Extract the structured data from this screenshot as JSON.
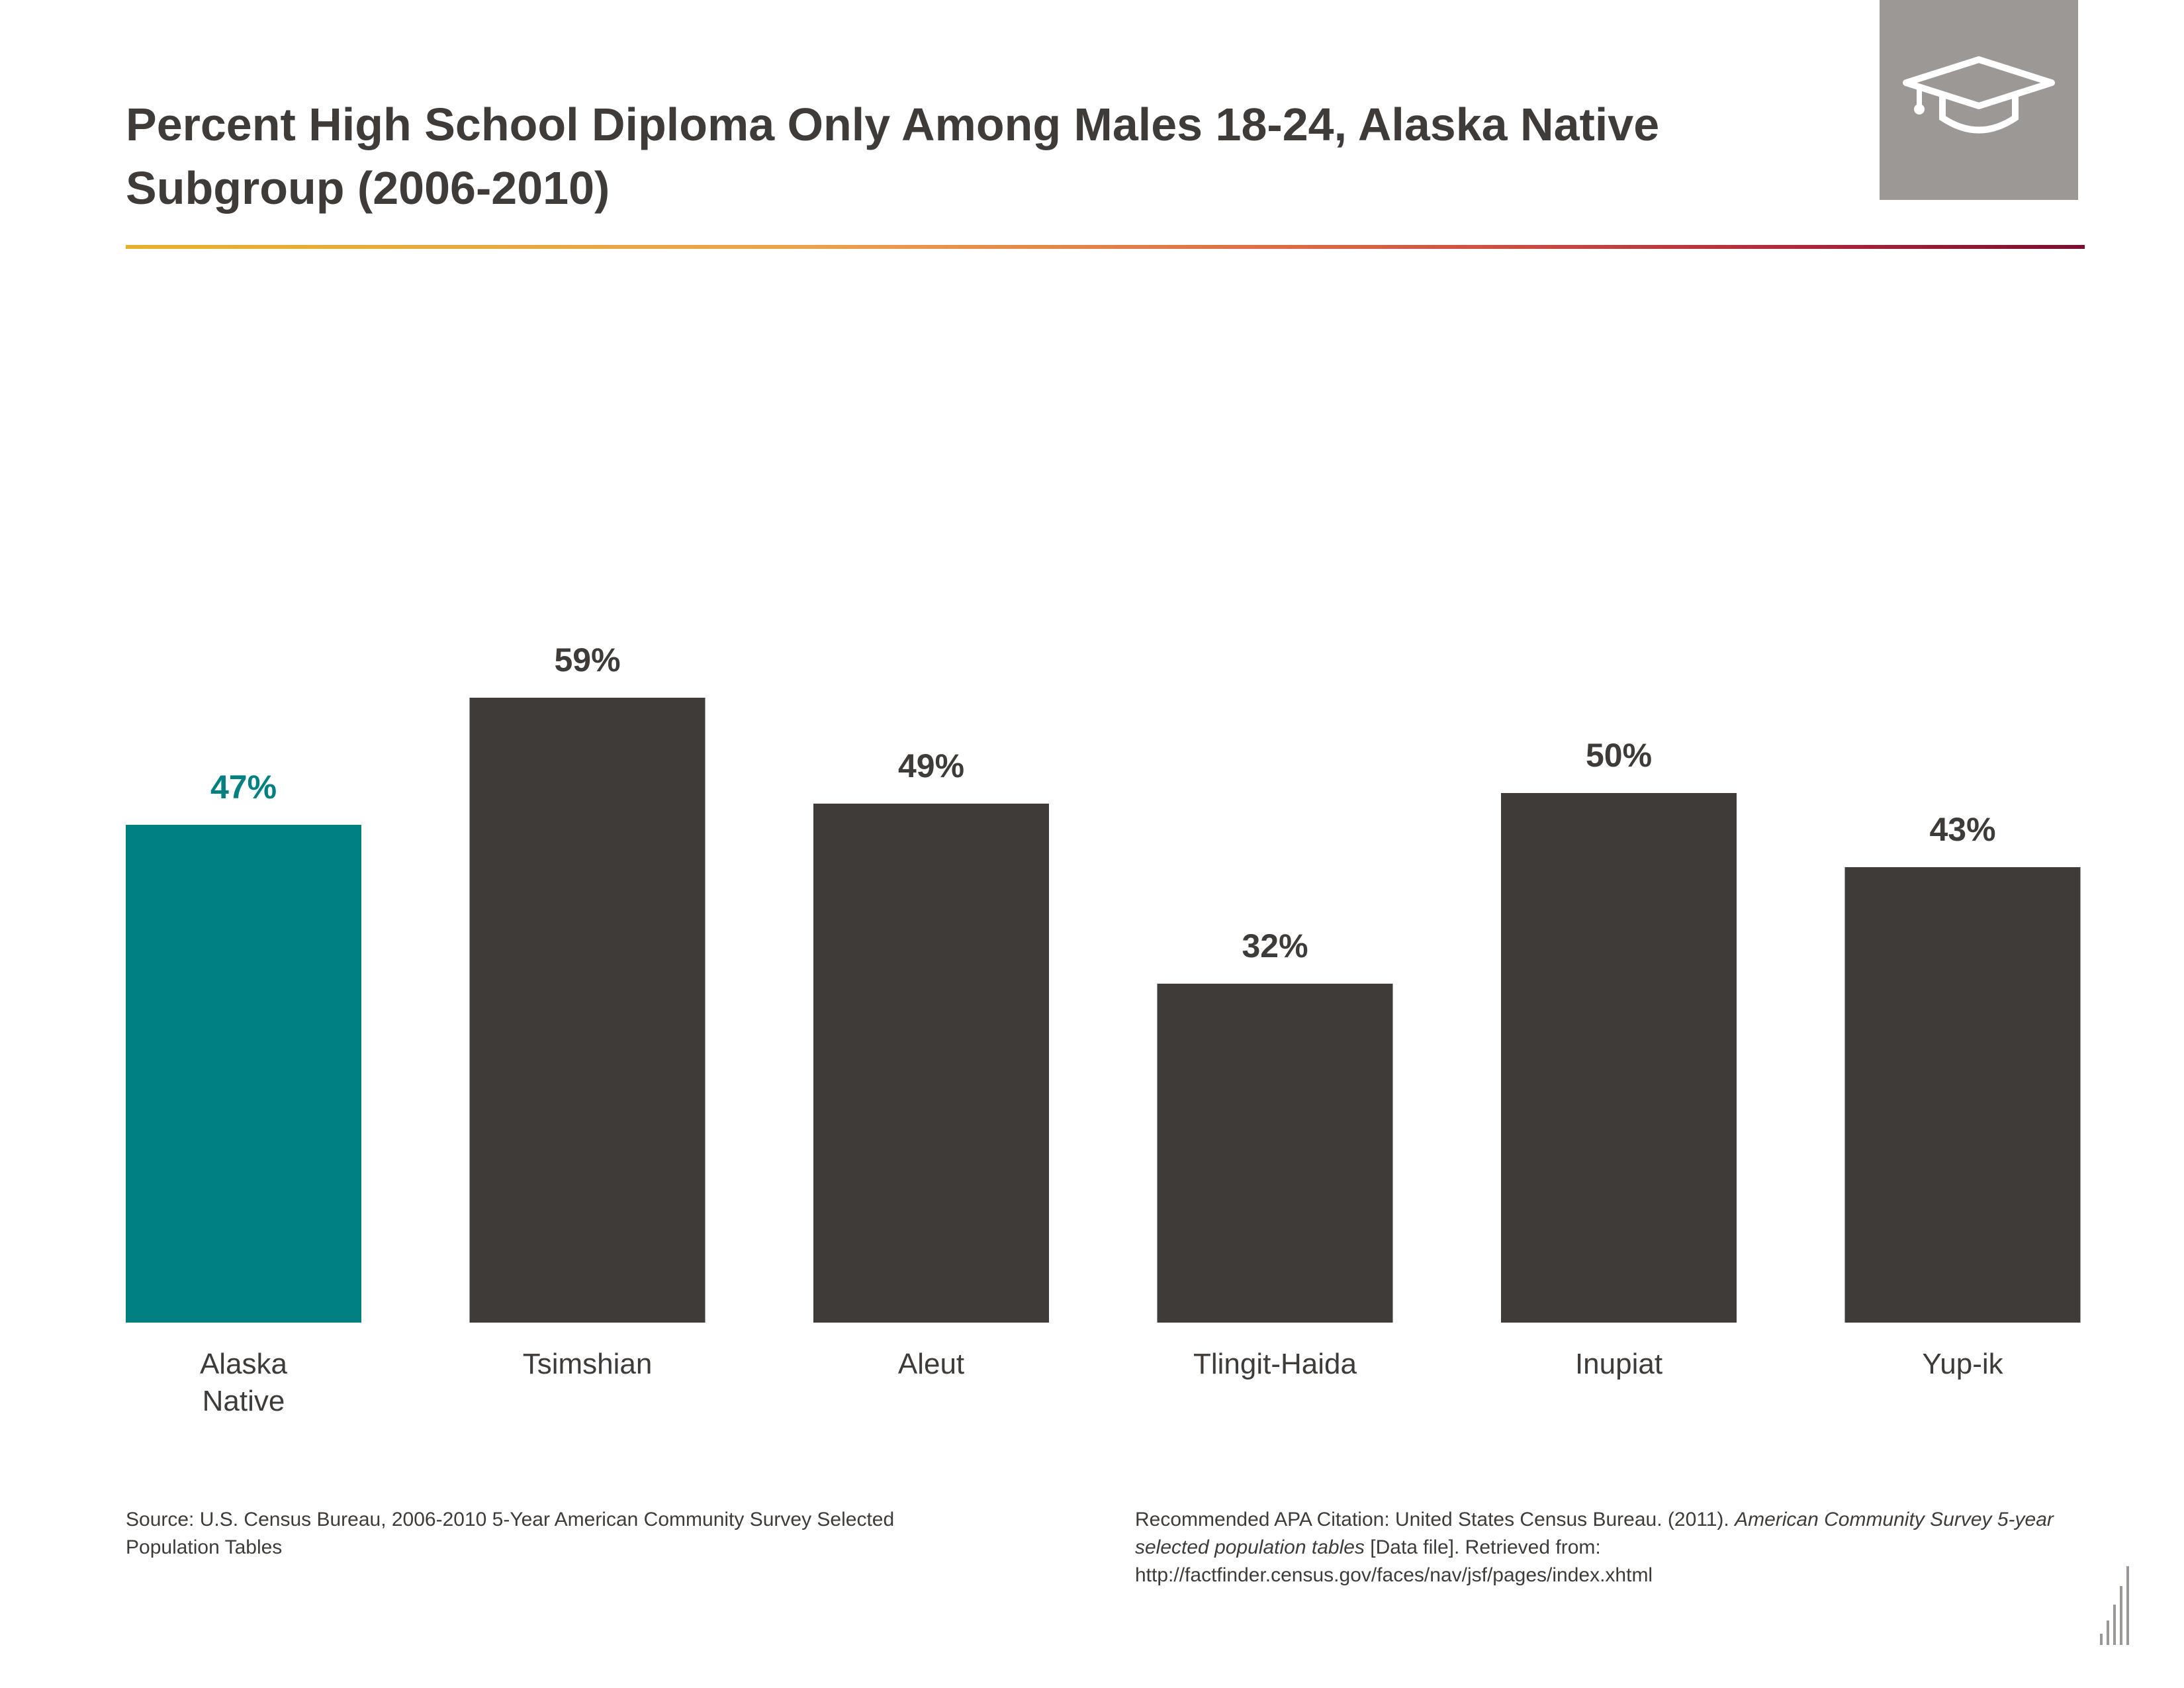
{
  "header": {
    "title": "Percent High School Diploma Only Among Males 18-24, Alaska Native Subgroup (2006-2010)",
    "badge_icon": "graduation-cap-icon"
  },
  "colors": {
    "highlight": "#008080",
    "bar": "#3f3b38",
    "badge": "#9c9896"
  },
  "chart_data": {
    "type": "bar",
    "title": "Percent High School Diploma Only Among Males 18-24, Alaska Native Subgroup (2006-2010)",
    "categories": [
      "Alaska Native",
      "Tsimshian",
      "Aleut",
      "Tlingit-Haida",
      "Inupiat",
      "Yup-ik"
    ],
    "category_lines": [
      [
        "Alaska",
        "Native"
      ],
      [
        "Tsimshian"
      ],
      [
        "Aleut"
      ],
      [
        "Tlingit-Haida"
      ],
      [
        "Inupiat"
      ],
      [
        "Yup-ik"
      ]
    ],
    "values": [
      47,
      59,
      49,
      32,
      50,
      43
    ],
    "data_labels": [
      "47%",
      "59%",
      "49%",
      "32%",
      "50%",
      "43%"
    ],
    "highlight_index": 0,
    "xlabel": "",
    "ylabel": "",
    "ylim": [
      0,
      100
    ],
    "grid": false,
    "legend": "none"
  },
  "footer": {
    "source": "Source: U.S. Census Bureau, 2006-2010 5-Year American Community Survey Selected Population Tables",
    "citation_prefix": "Recommended APA Citation: United States Census Bureau. (2011). ",
    "citation_italic": "American Community Survey 5-year selected population tables",
    "citation_suffix": " [Data file]. Retrieved from: http://factfinder.census.gov/faces/nav/jsf/pages/index.xhtml"
  }
}
